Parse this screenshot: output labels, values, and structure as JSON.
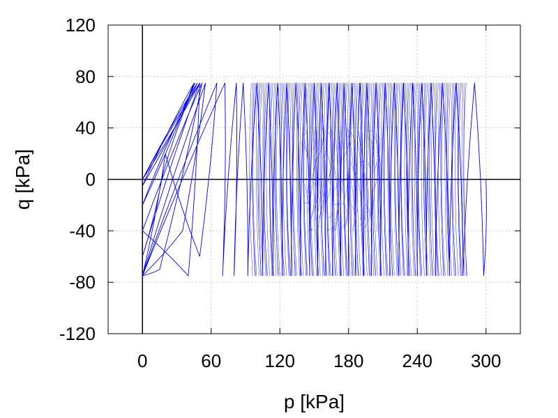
{
  "chart_data": {
    "type": "line",
    "title": "",
    "xlabel": "p [kPa]",
    "ylabel": "q [kPa]",
    "xlim": [
      -30,
      330
    ],
    "ylim": [
      -120,
      120
    ],
    "xticks": [
      0,
      60,
      120,
      180,
      240,
      300
    ],
    "yticks": [
      -120,
      -80,
      -40,
      0,
      40,
      80,
      120
    ],
    "xtick_labels": [
      "0",
      "60",
      "120",
      "180",
      "240",
      "300"
    ],
    "ytick_labels": [
      "-120",
      "-80",
      "-40",
      "0",
      "40",
      "80",
      "120"
    ],
    "grid": true,
    "zero_lines": true,
    "legend": "none",
    "series_color": "#0000ff",
    "series": [
      {
        "description_points": "stress path p-q, approximate reversal points",
        "x": [
          0,
          50,
          0,
          48,
          0,
          45,
          0,
          46,
          18,
          0,
          50,
          40,
          0,
          52,
          15,
          0,
          55,
          35,
          0,
          65,
          50,
          20,
          0,
          72,
          70,
          82,
          80,
          88,
          92,
          100,
          105,
          110,
          114,
          118,
          122,
          126,
          130,
          134,
          138,
          142,
          146,
          150,
          153,
          156,
          160,
          163,
          166,
          170,
          173,
          176,
          180,
          183,
          186,
          190,
          193,
          196,
          200,
          204,
          208,
          212,
          216,
          220,
          224,
          228,
          232,
          236,
          240,
          244,
          248,
          252,
          256,
          262,
          268,
          274,
          280,
          290,
          298,
          300
        ],
        "y": [
          0,
          75,
          0,
          75,
          -5,
          75,
          -20,
          75,
          5,
          -60,
          75,
          -75,
          -40,
          75,
          -70,
          -75,
          75,
          -40,
          -75,
          75,
          -60,
          20,
          -75,
          75,
          -75,
          75,
          -75,
          75,
          -75,
          75,
          -75,
          75,
          -75,
          75,
          -75,
          75,
          -75,
          75,
          -75,
          75,
          -75,
          75,
          -75,
          75,
          -75,
          75,
          -75,
          75,
          -75,
          75,
          -75,
          75,
          -75,
          75,
          -75,
          75,
          -75,
          75,
          -75,
          75,
          -75,
          75,
          -75,
          75,
          -75,
          75,
          -75,
          75,
          -75,
          75,
          -75,
          75,
          -75,
          75,
          -75,
          75,
          -75,
          0
        ]
      }
    ]
  }
}
